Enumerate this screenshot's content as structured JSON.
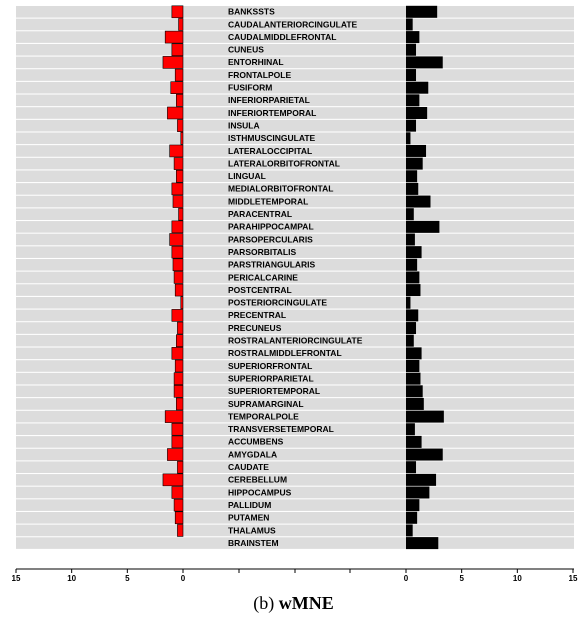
{
  "caption": {
    "prefix": "(b) ",
    "method": "wMNE"
  },
  "colors": {
    "left_bar": "#ff0000",
    "right_bar": "#000000",
    "stripe": "#dcdcdc"
  },
  "chart_data": {
    "type": "bar",
    "orientation": "horizontal",
    "layout": "mirrored-two-panel",
    "stripes": true,
    "grid": false,
    "categories": [
      "BANKSSTS",
      "CAUDALANTERIORCINGULATE",
      "CAUDALMIDDLEFRONTAL",
      "CUNEUS",
      "ENTORHINAL",
      "FRONTALPOLE",
      "FUSIFORM",
      "INFERIORPARIETAL",
      "INFERIORTEMPORAL",
      "INSULA",
      "ISTHMUSCINGULATE",
      "LATERALOCCIPITAL",
      "LATERALORBITOFRONTAL",
      "LINGUAL",
      "MEDIALORBITOFRONTAL",
      "MIDDLETEMPORAL",
      "PARACENTRAL",
      "PARAHIPPOCAMPAL",
      "PARSOPERCULARIS",
      "PARSORBITALIS",
      "PARSTRIANGULARIS",
      "PERICALCARINE",
      "POSTCENTRAL",
      "POSTERIORCINGULATE",
      "PRECENTRAL",
      "PRECUNEUS",
      "ROSTRALANTERIORCINGULATE",
      "ROSTRALMIDDLEFRONTAL",
      "SUPERIORFRONTAL",
      "SUPERIORPARIETAL",
      "SUPERIORTEMPORAL",
      "SUPRAMARGINAL",
      "TEMPORALPOLE",
      "TRANSVERSETEMPORAL",
      "ACCUMBENS",
      "AMYGDALA",
      "CAUDATE",
      "CEREBELLUM",
      "HIPPOCAMPUS",
      "PALLIDUM",
      "PUTAMEN",
      "THALAMUS",
      "BRAINSTEM"
    ],
    "series": [
      {
        "side": "left",
        "values": [
          1.0,
          0.4,
          1.6,
          1.0,
          1.8,
          0.7,
          1.1,
          0.6,
          1.4,
          0.5,
          0.2,
          1.2,
          0.8,
          0.6,
          1.0,
          0.9,
          0.4,
          1.0,
          1.2,
          1.0,
          0.9,
          0.8,
          0.7,
          0.2,
          1.0,
          0.5,
          0.6,
          1.0,
          0.7,
          0.8,
          0.8,
          0.6,
          1.6,
          1.0,
          1.0,
          1.4,
          0.5,
          1.8,
          1.0,
          0.8,
          0.7,
          0.5,
          0.0
        ]
      },
      {
        "side": "right",
        "values": [
          2.8,
          0.6,
          1.2,
          0.9,
          3.3,
          0.9,
          2.0,
          1.2,
          1.9,
          0.9,
          0.4,
          1.8,
          1.5,
          1.0,
          1.1,
          2.2,
          0.7,
          3.0,
          0.8,
          1.4,
          1.0,
          1.2,
          1.3,
          0.4,
          1.1,
          0.9,
          0.7,
          1.4,
          1.2,
          1.3,
          1.5,
          1.6,
          3.4,
          0.8,
          1.4,
          3.3,
          0.9,
          2.7,
          2.1,
          1.2,
          1.0,
          0.6,
          2.9
        ]
      }
    ],
    "left_axis": {
      "ticks": [
        "15",
        "10",
        "5",
        "0"
      ],
      "range": [
        0,
        15
      ],
      "reversed": true
    },
    "right_axis": {
      "ticks": [
        "0",
        "5",
        "10",
        "15"
      ],
      "range": [
        0,
        15
      ]
    },
    "xlabel": "",
    "ylabel": "",
    "title": ""
  }
}
